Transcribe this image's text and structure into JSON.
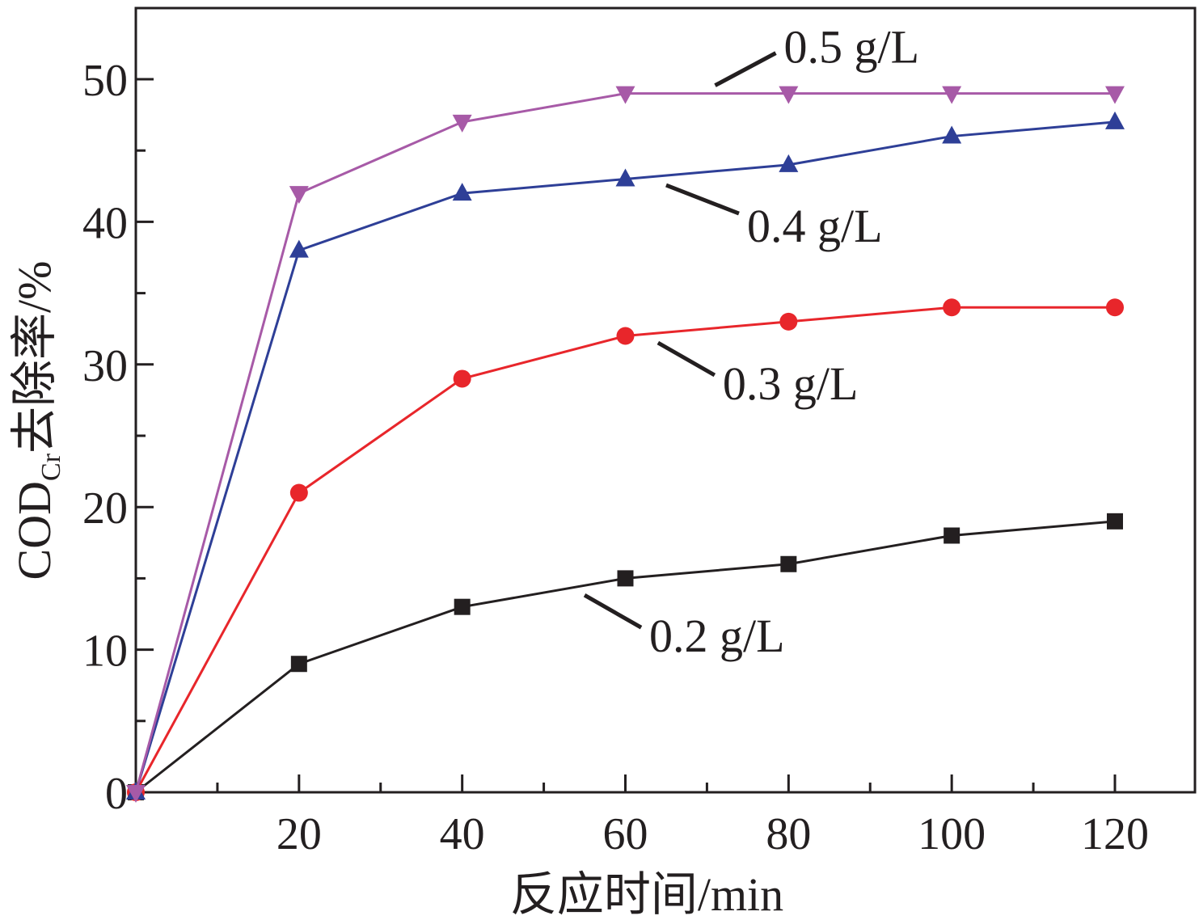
{
  "chart_data": {
    "type": "line",
    "title": "",
    "xlabel": "反应时间/min",
    "ylabel_main": "COD",
    "ylabel_sub": "Cr",
    "ylabel_rest": "去除率/%",
    "xlim": [
      0,
      129
    ],
    "ylim": [
      0,
      55
    ],
    "x_ticks": [
      20,
      40,
      60,
      80,
      100,
      120
    ],
    "y_ticks": [
      0,
      10,
      20,
      30,
      40,
      50
    ],
    "grid": false,
    "legend": "none (inline annotations)",
    "x": [
      0,
      20,
      40,
      60,
      80,
      100,
      120
    ],
    "series": [
      {
        "name": "0.2 g/L",
        "color": "#231f20",
        "marker": "square",
        "values": [
          0,
          9,
          13,
          15,
          16,
          18,
          19
        ],
        "annot_at": 55
      },
      {
        "name": "0.3 g/L",
        "color": "#e8262b",
        "marker": "circle",
        "values": [
          0,
          21,
          29,
          32,
          33,
          34,
          34
        ],
        "annot_at": 64
      },
      {
        "name": "0.4 g/L",
        "color": "#2e3f97",
        "marker": "triangle-up",
        "values": [
          0,
          38,
          42,
          43,
          44,
          46,
          47
        ],
        "annot_at": 65
      },
      {
        "name": "0.5 g/L",
        "color": "#a75aa7",
        "marker": "triangle-down",
        "values": [
          0,
          42,
          47,
          49,
          49,
          49,
          49
        ],
        "annot_at": 71
      }
    ]
  }
}
